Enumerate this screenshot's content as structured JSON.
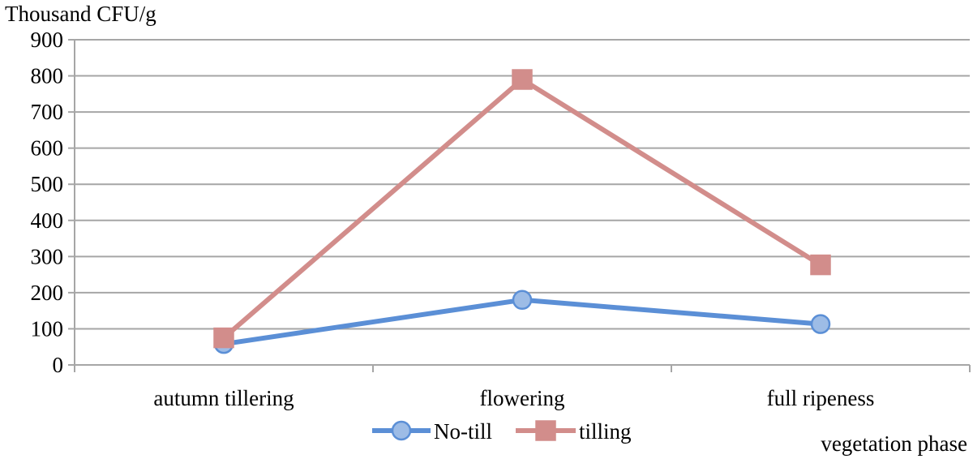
{
  "chart_data": {
    "type": "line",
    "ylabel": "Thousand CFU/g",
    "xlabel": "vegetation phase",
    "categories": [
      "autumn tillering",
      "flowering",
      "full ripeness"
    ],
    "ylim": [
      0,
      900
    ],
    "yticks": [
      "0",
      "100",
      "200",
      "300",
      "400",
      "500",
      "600",
      "700",
      "800",
      "900"
    ],
    "grid": true,
    "legend_position": "bottom-center",
    "series": [
      {
        "name": "No-till",
        "values": [
          58,
          180,
          113
        ],
        "color": "#5b8fd6",
        "marker_fill": "#9dbce6",
        "marker": "circle"
      },
      {
        "name": "tilling",
        "values": [
          75,
          790,
          277
        ],
        "color": "#d28d8b",
        "marker_fill": "#d28d8b",
        "marker": "square"
      }
    ]
  }
}
